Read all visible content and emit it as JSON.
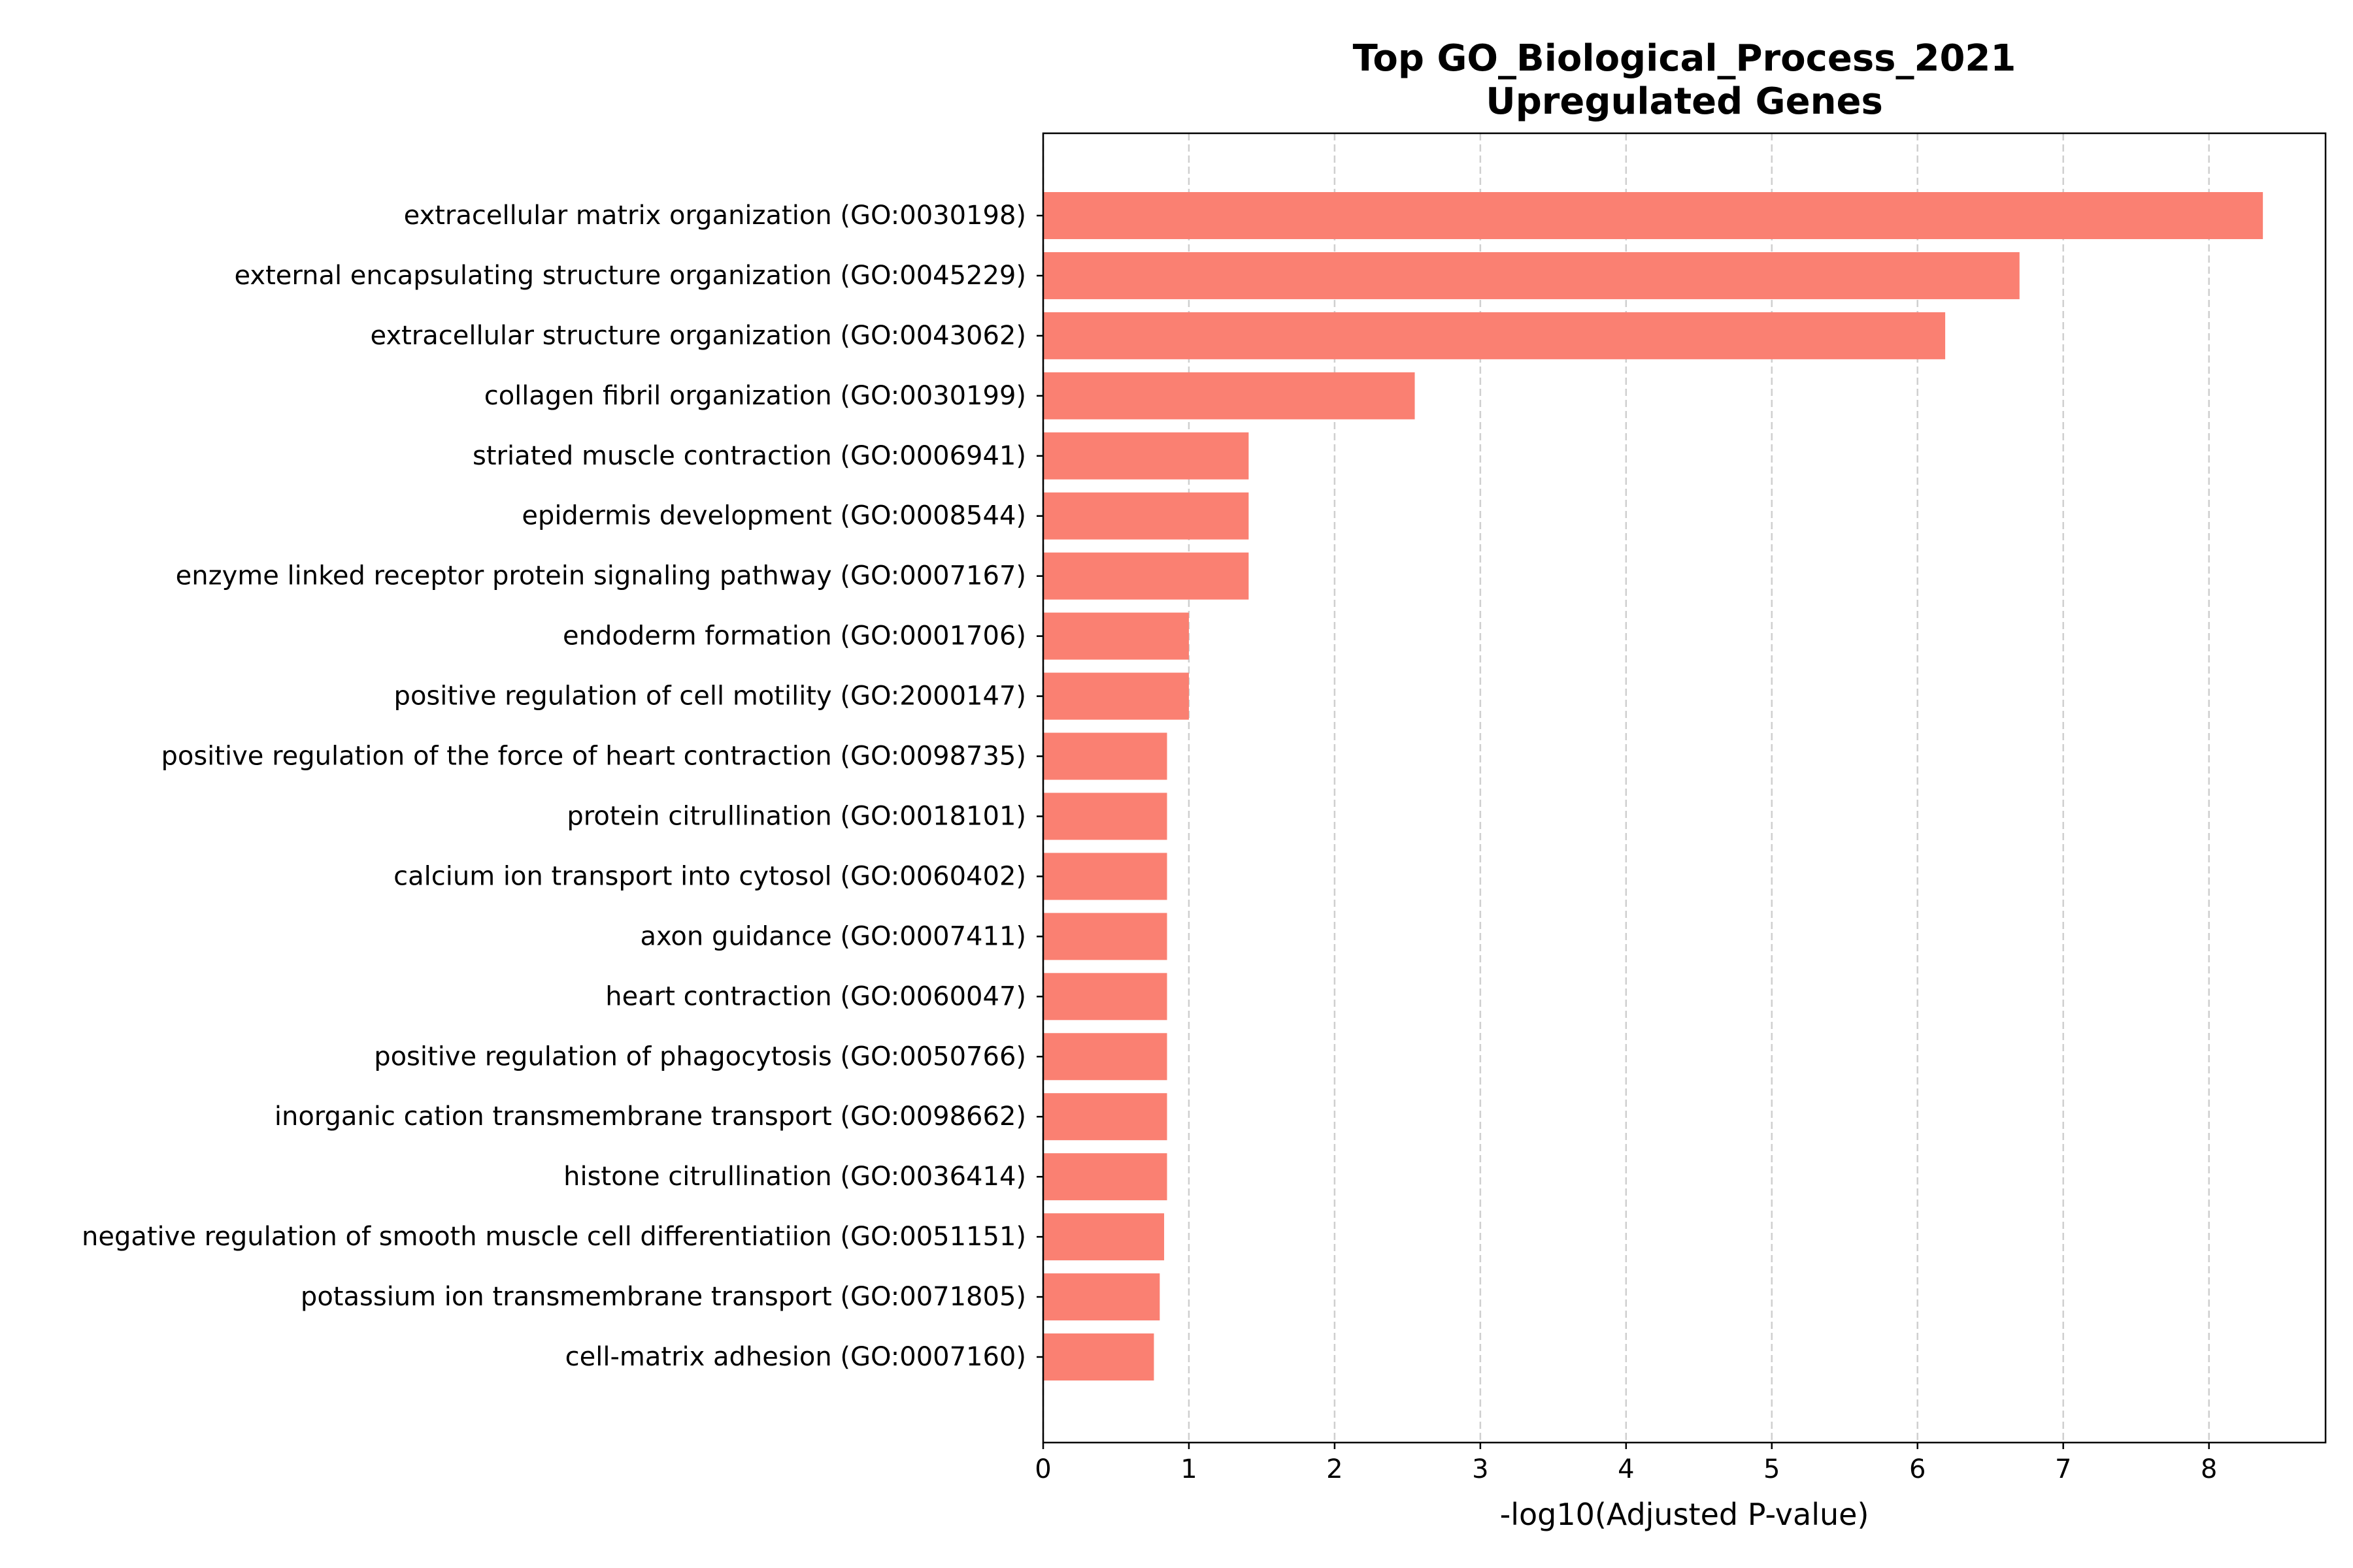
{
  "chart_data": {
    "type": "bar",
    "orientation": "horizontal",
    "title_lines": [
      "Top GO_Biological_Process_2021",
      "Upregulated Genes"
    ],
    "xlabel": "-log10(Adjusted P-value)",
    "ylabel": "",
    "xlim": [
      0,
      8.8
    ],
    "xticks": [
      0,
      1,
      2,
      3,
      4,
      5,
      6,
      7,
      8
    ],
    "grid": "x-dashed",
    "bar_color": "#fa8072",
    "categories": [
      "extracellular matrix organization (GO:0030198)",
      "external encapsulating structure organization (GO:0045229)",
      "extracellular structure organization (GO:0043062)",
      "collagen fibril organization (GO:0030199)",
      "striated muscle contraction (GO:0006941)",
      "epidermis development (GO:0008544)",
      "enzyme linked receptor protein signaling pathway (GO:0007167)",
      "endoderm formation (GO:0001706)",
      "positive regulation of cell motility (GO:2000147)",
      "positive regulation of the force of heart contraction (GO:0098735)",
      "protein citrullination (GO:0018101)",
      "calcium ion transport into cytosol (GO:0060402)",
      "axon guidance (GO:0007411)",
      "heart contraction (GO:0060047)",
      "positive regulation of phagocytosis (GO:0050766)",
      "inorganic cation transmembrane transport (GO:0098662)",
      "histone citrullination (GO:0036414)",
      "negative regulation of smooth muscle cell differentiatiion (GO:0051151)",
      "potassium ion transmembrane transport (GO:0071805)",
      "cell-matrix adhesion (GO:0007160)"
    ],
    "values": [
      8.37,
      6.7,
      6.19,
      2.55,
      1.41,
      1.41,
      1.41,
      1.0,
      1.0,
      0.85,
      0.85,
      0.85,
      0.85,
      0.85,
      0.85,
      0.85,
      0.85,
      0.83,
      0.8,
      0.76
    ]
  }
}
